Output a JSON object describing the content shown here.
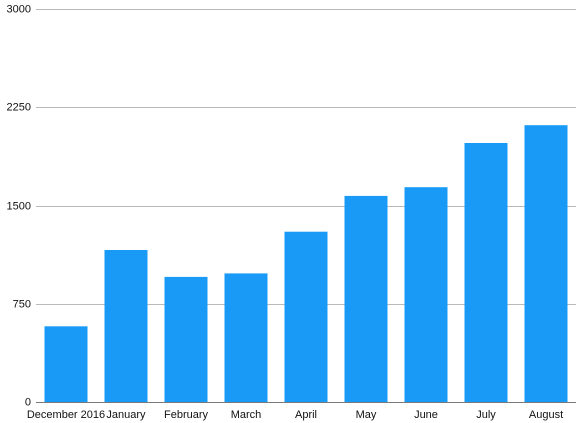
{
  "chart_data": {
    "type": "bar",
    "categories": [
      "December 2016",
      "January",
      "February",
      "March",
      "April",
      "May",
      "June",
      "July",
      "August"
    ],
    "values": [
      578,
      1160,
      955,
      982,
      1300,
      1573,
      1640,
      1977,
      2113
    ],
    "y_ticks": [
      "0",
      "750",
      "1500",
      "2250",
      "3000"
    ],
    "ylim": [
      0,
      3000
    ],
    "grid": true,
    "legend": "none",
    "colors": {
      "bar": "#1a9af7"
    }
  }
}
